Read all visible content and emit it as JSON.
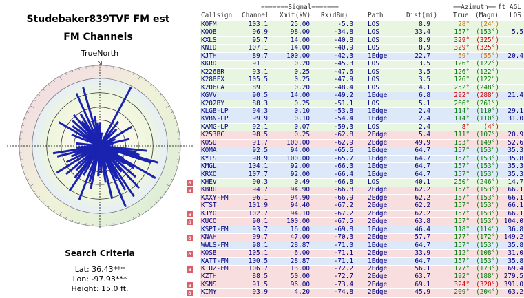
{
  "title_line1": "Studebaker839TVF FM est",
  "title_line2": "FM Channels",
  "truenorth_label": "TrueNorth",
  "north_marker": "N",
  "search": {
    "heading": "Search Criteria",
    "lat": "Lat: 36.43***",
    "lon": "Lon: -97.93***",
    "height": "Height: 15.0 ft."
  },
  "colors": {
    "bar": "#1a22b0",
    "los": "#e8f5e0",
    "edge1": "#dde9f8",
    "edge2": "#f8dede"
  },
  "header": {
    "signal_group": "=======Signal=======",
    "azimuth_group": "==Azimuth==",
    "ft_agl": "ft AGL",
    "cols": [
      "Callsign",
      "Channel",
      "Xmit(kW)",
      "Rx(dBm)",
      "Path",
      "Dist(mi)",
      "True",
      "(Magn)",
      "LOS"
    ]
  },
  "stations": [
    {
      "call": "KOFM",
      "ch": "103.1",
      "kw": "25.00",
      "rx": "-5.3",
      "path": "LOS",
      "dist": "8.9",
      "tru": "28°",
      "mag": "(24°)",
      "agl": "",
      "cls": 0,
      "mark": false,
      "az": "ora"
    },
    {
      "call": "KQOB",
      "ch": "96.9",
      "kw": "98.00",
      "rx": "-34.8",
      "path": "LOS",
      "dist": "33.4",
      "tru": "157°",
      "mag": "(153°)",
      "agl": "5.5",
      "cls": 0,
      "mark": false,
      "az": "grn"
    },
    {
      "call": "KXLS",
      "ch": "95.7",
      "kw": "14.00",
      "rx": "-40.8",
      "path": "LOS",
      "dist": "8.9",
      "tru": "329°",
      "mag": "(325°)",
      "agl": "",
      "cls": 0,
      "mark": false,
      "az": "red"
    },
    {
      "call": "KNID",
      "ch": "107.1",
      "kw": "14.00",
      "rx": "-40.9",
      "path": "LOS",
      "dist": "8.9",
      "tru": "329°",
      "mag": "(325°)",
      "agl": "",
      "cls": 0,
      "mark": false,
      "az": "red"
    },
    {
      "call": "KJTH",
      "ch": "89.7",
      "kw": "100.00",
      "rx": "-42.3",
      "path": "1Edge",
      "dist": "22.7",
      "tru": "59°",
      "mag": "(55°)",
      "agl": "20.4",
      "cls": 1,
      "mark": false,
      "az": "ora"
    },
    {
      "call": "KKRD",
      "ch": "91.1",
      "kw": "0.20",
      "rx": "-45.3",
      "path": "LOS",
      "dist": "3.5",
      "tru": "126°",
      "mag": "(122°)",
      "agl": "",
      "cls": 0,
      "mark": false,
      "az": "grn"
    },
    {
      "call": "K226BR",
      "ch": "93.1",
      "kw": "0.25",
      "rx": "-47.6",
      "path": "LOS",
      "dist": "3.5",
      "tru": "126°",
      "mag": "(122°)",
      "agl": "",
      "cls": 0,
      "mark": false,
      "az": "grn"
    },
    {
      "call": "K288FX",
      "ch": "105.5",
      "kw": "0.25",
      "rx": "-47.9",
      "path": "LOS",
      "dist": "3.5",
      "tru": "126°",
      "mag": "(122°)",
      "agl": "",
      "cls": 0,
      "mark": false,
      "az": "grn"
    },
    {
      "call": "K206CA",
      "ch": "89.1",
      "kw": "0.20",
      "rx": "-48.4",
      "path": "LOS",
      "dist": "4.1",
      "tru": "252°",
      "mag": "(248°)",
      "agl": "",
      "cls": 0,
      "mark": false,
      "az": "grn"
    },
    {
      "call": "KGVV",
      "ch": "90.5",
      "kw": "14.00",
      "rx": "-49.2",
      "path": "1Edge",
      "dist": "6.8",
      "tru": "292°",
      "mag": "(288°)",
      "agl": "21.4",
      "cls": 1,
      "mark": false,
      "az": "red"
    },
    {
      "call": "K202BY",
      "ch": "88.3",
      "kw": "0.25",
      "rx": "-51.1",
      "path": "LOS",
      "dist": "5.1",
      "tru": "266°",
      "mag": "(261°)",
      "agl": "",
      "cls": 0,
      "mark": false,
      "az": "grn"
    },
    {
      "call": "KLGB-LP",
      "ch": "94.3",
      "kw": "0.10",
      "rx": "-53.8",
      "path": "1Edge",
      "dist": "2.4",
      "tru": "114°",
      "mag": "(110°)",
      "agl": "29.1",
      "cls": 1,
      "mark": false,
      "az": "grn"
    },
    {
      "call": "KVBN-LP",
      "ch": "99.9",
      "kw": "0.10",
      "rx": "-54.4",
      "path": "1Edge",
      "dist": "2.4",
      "tru": "114°",
      "mag": "(110°)",
      "agl": "31.0",
      "cls": 1,
      "mark": false,
      "az": "grn"
    },
    {
      "call": "KAMG-LP",
      "ch": "92.1",
      "kw": "0.07",
      "rx": "-59.3",
      "path": "LOS",
      "dist": "2.4",
      "tru": "8°",
      "mag": "(4°)",
      "agl": "",
      "cls": 0,
      "mark": false,
      "az": "red"
    },
    {
      "call": "K253BC",
      "ch": "98.5",
      "kw": "0.25",
      "rx": "-62.8",
      "path": "2Edge",
      "dist": "5.4",
      "tru": "111°",
      "mag": "(107°)",
      "agl": "20.9",
      "cls": 2,
      "mark": false,
      "az": "grn"
    },
    {
      "call": "KOSU",
      "ch": "91.7",
      "kw": "100.00",
      "rx": "-62.9",
      "path": "2Edge",
      "dist": "49.9",
      "tru": "153°",
      "mag": "(149°)",
      "agl": "52.6",
      "cls": 2,
      "mark": false,
      "az": "grn"
    },
    {
      "call": "KOMA",
      "ch": "92.5",
      "kw": "94.00",
      "rx": "-65.6",
      "path": "1Edge",
      "dist": "64.7",
      "tru": "157°",
      "mag": "(153°)",
      "agl": "35.3",
      "cls": 1,
      "mark": false,
      "az": "grn"
    },
    {
      "call": "KYIS",
      "ch": "98.9",
      "kw": "100.00",
      "rx": "-65.7",
      "path": "1Edge",
      "dist": "64.7",
      "tru": "157°",
      "mag": "(153°)",
      "agl": "35.8",
      "cls": 1,
      "mark": false,
      "az": "grn"
    },
    {
      "call": "KMGL",
      "ch": "104.1",
      "kw": "92.00",
      "rx": "-66.3",
      "path": "1Edge",
      "dist": "64.7",
      "tru": "157°",
      "mag": "(153°)",
      "agl": "35.3",
      "cls": 1,
      "mark": false,
      "az": "grn"
    },
    {
      "call": "KRXO",
      "ch": "107.7",
      "kw": "92.00",
      "rx": "-66.4",
      "path": "1Edge",
      "dist": "64.7",
      "tru": "157°",
      "mag": "(153°)",
      "agl": "35.3",
      "cls": 1,
      "mark": false,
      "az": "grn"
    },
    {
      "call": "KHEV",
      "ch": "90.3",
      "kw": "0.49",
      "rx": "-66.8",
      "path": "LOS",
      "dist": "40.1",
      "tru": "250°",
      "mag": "(246°)",
      "agl": "14.7",
      "cls": 0,
      "mark": true,
      "az": "grn"
    },
    {
      "call": "KBRU",
      "ch": "94.7",
      "kw": "94.90",
      "rx": "-66.8",
      "path": "2Edge",
      "dist": "62.2",
      "tru": "157°",
      "mag": "(153°)",
      "agl": "66.1",
      "cls": 2,
      "mark": true,
      "az": "grn"
    },
    {
      "call": "KXXY-FM",
      "ch": "96.1",
      "kw": "94.90",
      "rx": "-66.9",
      "path": "2Edge",
      "dist": "62.2",
      "tru": "157°",
      "mag": "(153°)",
      "agl": "66.1",
      "cls": 2,
      "mark": false,
      "az": "grn"
    },
    {
      "call": "KTST",
      "ch": "101.9",
      "kw": "94.40",
      "rx": "-67.2",
      "path": "2Edge",
      "dist": "62.2",
      "tru": "157°",
      "mag": "(153°)",
      "agl": "66.1",
      "cls": 2,
      "mark": false,
      "az": "grn"
    },
    {
      "call": "KJYO",
      "ch": "102.7",
      "kw": "94.10",
      "rx": "-67.2",
      "path": "2Edge",
      "dist": "62.2",
      "tru": "157°",
      "mag": "(153°)",
      "agl": "66.1",
      "cls": 2,
      "mark": true,
      "az": "grn"
    },
    {
      "call": "KUCO",
      "ch": "90.1",
      "kw": "100.00",
      "rx": "-67.5",
      "path": "2Edge",
      "dist": "63.8",
      "tru": "157°",
      "mag": "(153°)",
      "agl": "104.0",
      "cls": 2,
      "mark": true,
      "az": "grn"
    },
    {
      "call": "KSPI-FM",
      "ch": "93.7",
      "kw": "16.00",
      "rx": "-69.8",
      "path": "1Edge",
      "dist": "46.4",
      "tru": "118°",
      "mag": "(114°)",
      "agl": "36.8",
      "cls": 1,
      "mark": false,
      "az": "grn"
    },
    {
      "call": "KNAH",
      "ch": "99.7",
      "kw": "47.00",
      "rx": "-70.3",
      "path": "2Edge",
      "dist": "57.7",
      "tru": "177°",
      "mag": "(172°)",
      "agl": "149.2",
      "cls": 2,
      "mark": true,
      "az": "grn"
    },
    {
      "call": "WWLS-FM",
      "ch": "98.1",
      "kw": "28.87",
      "rx": "-71.0",
      "path": "1Edge",
      "dist": "64.7",
      "tru": "157°",
      "mag": "(153°)",
      "agl": "35.8",
      "cls": 1,
      "mark": false,
      "az": "grn"
    },
    {
      "call": "KOSB",
      "ch": "105.1",
      "kw": "6.00",
      "rx": "-71.1",
      "path": "2Edge",
      "dist": "33.9",
      "tru": "112°",
      "mag": "(108°)",
      "agl": "31.0",
      "cls": 2,
      "mark": true,
      "az": "grn"
    },
    {
      "call": "KATT-FM",
      "ch": "100.5",
      "kw": "28.87",
      "rx": "-71.1",
      "path": "1Edge",
      "dist": "64.7",
      "tru": "157°",
      "mag": "(153°)",
      "agl": "35.8",
      "cls": 1,
      "mark": false,
      "az": "grn"
    },
    {
      "call": "KTUZ-FM",
      "ch": "106.7",
      "kw": "13.00",
      "rx": "-72.2",
      "path": "2Edge",
      "dist": "56.1",
      "tru": "177°",
      "mag": "(173°)",
      "agl": "69.4",
      "cls": 2,
      "mark": true,
      "az": "grn"
    },
    {
      "call": "KZTH",
      "ch": "88.5",
      "kw": "50.00",
      "rx": "-72.7",
      "path": "2Edge",
      "dist": "63.7",
      "tru": "192°",
      "mag": "(188°)",
      "agl": "279.5",
      "cls": 2,
      "mark": false,
      "az": "grn"
    },
    {
      "call": "KSNS",
      "ch": "91.5",
      "kw": "96.00",
      "rx": "-73.4",
      "path": "2Edge",
      "dist": "69.1",
      "tru": "324°",
      "mag": "(320°)",
      "agl": "391.0",
      "cls": 2,
      "mark": true,
      "az": "red"
    },
    {
      "call": "KIMY",
      "ch": "93.9",
      "kw": "4.20",
      "rx": "-74.8",
      "path": "2Edge",
      "dist": "45.9",
      "tru": "209°",
      "mag": "(204°)",
      "agl": "63.2",
      "cls": 2,
      "mark": true,
      "az": "grn"
    }
  ],
  "polar_bars": [
    {
      "az": 28,
      "r": 0.98
    },
    {
      "az": 329,
      "r": 0.55
    },
    {
      "az": 59,
      "r": 0.55
    },
    {
      "az": 126,
      "r": 0.45
    },
    {
      "az": 252,
      "r": 0.35
    },
    {
      "az": 292,
      "r": 0.45
    },
    {
      "az": 266,
      "r": 0.35
    },
    {
      "az": 114,
      "r": 0.25
    },
    {
      "az": 8,
      "r": 0.2
    },
    {
      "az": 111,
      "r": 0.25
    },
    {
      "az": 153,
      "r": 0.55
    },
    {
      "az": 157,
      "r": 0.98
    },
    {
      "az": 250,
      "r": 0.45
    },
    {
      "az": 118,
      "r": 0.4
    },
    {
      "az": 177,
      "r": 0.4
    },
    {
      "az": 112,
      "r": 0.3
    },
    {
      "az": 192,
      "r": 0.65
    },
    {
      "az": 324,
      "r": 0.45
    },
    {
      "az": 209,
      "r": 0.5
    },
    {
      "az": 1,
      "r": 0.35
    },
    {
      "az": 45,
      "r": 0.35
    },
    {
      "az": 67,
      "r": 0.25
    },
    {
      "az": 83,
      "r": 0.2
    },
    {
      "az": 96,
      "r": 0.7
    },
    {
      "az": 100,
      "r": 0.55
    },
    {
      "az": 103,
      "r": 0.6
    },
    {
      "az": 106,
      "r": 0.9
    },
    {
      "az": 108,
      "r": 0.8
    },
    {
      "az": 120,
      "r": 0.95
    },
    {
      "az": 123,
      "r": 0.6
    },
    {
      "az": 131,
      "r": 0.7
    },
    {
      "az": 137,
      "r": 0.85
    },
    {
      "az": 140,
      "r": 0.5
    },
    {
      "az": 146,
      "r": 0.9
    },
    {
      "az": 150,
      "r": 0.75
    },
    {
      "az": 164,
      "r": 0.35
    },
    {
      "az": 171,
      "r": 0.55
    },
    {
      "az": 183,
      "r": 0.45
    },
    {
      "az": 196,
      "r": 0.55
    },
    {
      "az": 201,
      "r": 0.85
    },
    {
      "az": 214,
      "r": 0.8
    },
    {
      "az": 218,
      "r": 0.6
    },
    {
      "az": 224,
      "r": 0.5
    },
    {
      "az": 230,
      "r": 0.65
    },
    {
      "az": 238,
      "r": 0.75
    },
    {
      "az": 244,
      "r": 0.55
    },
    {
      "az": 256,
      "r": 0.65
    },
    {
      "az": 261,
      "r": 0.7
    },
    {
      "az": 276,
      "r": 0.35
    },
    {
      "az": 300,
      "r": 0.7
    },
    {
      "az": 306,
      "r": 0.5
    },
    {
      "az": 313,
      "r": 0.55
    },
    {
      "az": 320,
      "r": 0.6
    },
    {
      "az": 336,
      "r": 0.85
    },
    {
      "az": 344,
      "r": 0.9
    },
    {
      "az": 350,
      "r": 0.45
    },
    {
      "az": 355,
      "r": 0.35
    },
    {
      "az": 37,
      "r": 0.45
    },
    {
      "az": 77,
      "r": 0.45
    },
    {
      "az": 167,
      "r": 0.8
    }
  ]
}
